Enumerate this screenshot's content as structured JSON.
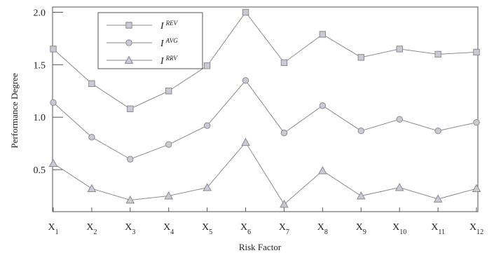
{
  "chart_data": {
    "type": "line",
    "xlabel": "Risk Factor",
    "ylabel": "Performance Degree",
    "categories": [
      {
        "base": "X",
        "sub": "1"
      },
      {
        "base": "X",
        "sub": "2"
      },
      {
        "base": "X",
        "sub": "3"
      },
      {
        "base": "X",
        "sub": "4"
      },
      {
        "base": "X",
        "sub": "5"
      },
      {
        "base": "X",
        "sub": "6"
      },
      {
        "base": "X",
        "sub": "7"
      },
      {
        "base": "X",
        "sub": "8"
      },
      {
        "base": "X",
        "sub": "9"
      },
      {
        "base": "X",
        "sub": "10"
      },
      {
        "base": "X",
        "sub": "11"
      },
      {
        "base": "X",
        "sub": "12"
      }
    ],
    "yticks": [
      "0.5",
      "1.0",
      "1.5",
      "2.0"
    ],
    "ylim": [
      0.1,
      2.05
    ],
    "grid": false,
    "legend_position": "top-left",
    "series": [
      {
        "name": {
          "base": "I",
          "sup": "REV"
        },
        "marker": "square",
        "values": [
          1.65,
          1.32,
          1.08,
          1.25,
          1.49,
          2.0,
          1.52,
          1.79,
          1.57,
          1.65,
          1.6,
          1.62
        ]
      },
      {
        "name": {
          "base": "I",
          "sup": "AVG"
        },
        "marker": "circle",
        "values": [
          1.14,
          0.81,
          0.6,
          0.74,
          0.92,
          1.35,
          0.85,
          1.11,
          0.87,
          0.98,
          0.87,
          0.95
        ]
      },
      {
        "name": {
          "base": "I",
          "sup": "RRV"
        },
        "marker": "triangle",
        "values": [
          0.56,
          0.32,
          0.21,
          0.25,
          0.33,
          0.76,
          0.17,
          0.49,
          0.25,
          0.33,
          0.22,
          0.32
        ]
      }
    ],
    "colors": {
      "line": "#8a8a8a",
      "marker_fill": "#c8cbd6",
      "axis": "#555555"
    }
  }
}
